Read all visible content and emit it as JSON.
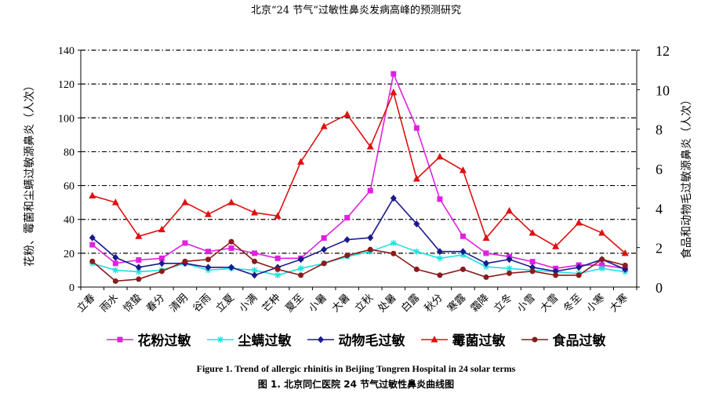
{
  "header": {
    "title": "北京“24 节气”过敏性鼻炎发病高峰的预测研究"
  },
  "figure": {
    "caption_en": "Figure 1. Trend of allergic rhinitis in Beijing Tongren Hospital in 24 solar terms",
    "caption_cn": "图 1.  北京同仁医院 24 节气过敏性鼻炎曲线图"
  },
  "chart_data": {
    "type": "line",
    "title": "",
    "categories": [
      "立春",
      "雨水",
      "惊蛰",
      "春分",
      "清明",
      "谷雨",
      "立夏",
      "小满",
      "芒种",
      "夏至",
      "小暑",
      "大暑",
      "立秋",
      "处暑",
      "白露",
      "秋分",
      "寒露",
      "霜降",
      "立冬",
      "小雪",
      "大雪",
      "冬至",
      "小寒",
      "大寒"
    ],
    "ylabel_left": "花粉、霉菌和尘螨过敏源鼻炎（人次）",
    "ylabel_right": "食品和动物毛过敏源鼻炎（人次）",
    "ylim_left": [
      0,
      140
    ],
    "ylim_right": [
      0,
      12
    ],
    "yticks_left": [
      "0",
      "20",
      "40",
      "60",
      "80",
      "100",
      "120",
      "140"
    ],
    "yticks_right": [
      "0",
      "2",
      "4",
      "6",
      "8",
      "10",
      "12"
    ],
    "grid": "horizontal dash-dot",
    "legend_position": "bottom",
    "series": [
      {
        "name": "花粉过敏",
        "axis": "left",
        "color": "#e020e0",
        "marker": "square",
        "values": [
          25,
          14,
          16,
          17,
          26,
          21,
          23,
          20,
          17,
          17,
          29,
          41,
          57,
          126,
          94,
          52,
          30,
          20,
          18,
          15,
          11,
          13,
          13,
          11
        ]
      },
      {
        "name": "尘螨过敏",
        "axis": "left",
        "color": "#20e0e0",
        "marker": "star",
        "values": [
          14,
          10,
          9,
          10,
          14,
          10,
          11,
          10,
          7,
          11,
          14,
          18,
          21,
          26,
          21,
          17,
          19,
          12,
          11,
          10,
          9,
          8,
          11,
          9
        ]
      },
      {
        "name": "动物毛过敏",
        "axis": "right",
        "color": "#1a1a8c",
        "marker": "diamond",
        "values": [
          2.5,
          1.5,
          1.0,
          1.2,
          1.2,
          1.0,
          1.0,
          0.6,
          1.0,
          1.4,
          1.9,
          2.4,
          2.5,
          4.5,
          3.2,
          1.8,
          1.8,
          1.2,
          1.4,
          1.0,
          0.8,
          1.0,
          1.4,
          0.9
        ]
      },
      {
        "name": "霉菌过敏",
        "axis": "left",
        "color": "#e01010",
        "marker": "triangle",
        "values": [
          54,
          50,
          30,
          34,
          50,
          43,
          50,
          44,
          42,
          74,
          95,
          102,
          83,
          115,
          64,
          77,
          69,
          29,
          45,
          32,
          24,
          38,
          32,
          20
        ]
      },
      {
        "name": "食品过敏",
        "axis": "right",
        "color": "#8b1a1a",
        "marker": "circle",
        "values": [
          1.3,
          0.3,
          0.4,
          0.8,
          1.3,
          1.4,
          2.3,
          1.3,
          0.9,
          0.6,
          1.2,
          1.6,
          1.9,
          1.7,
          0.9,
          0.6,
          0.9,
          0.5,
          0.7,
          0.8,
          0.6,
          0.6,
          1.4,
          1.1
        ]
      }
    ]
  }
}
